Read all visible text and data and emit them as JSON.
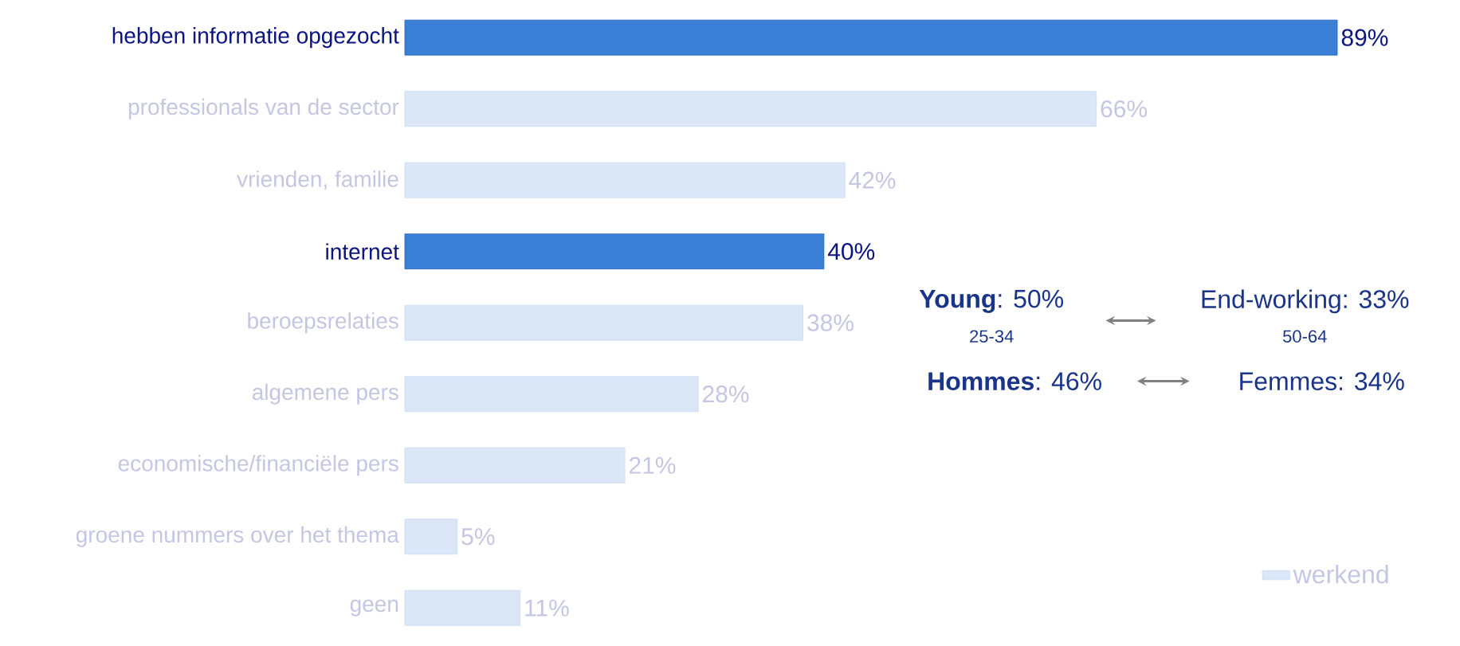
{
  "chart_data": {
    "type": "bar",
    "orientation": "horizontal",
    "categories": [
      "hebben informatie opgezocht",
      "professionals van de sector",
      "vrienden, familie",
      "internet",
      "beroepsrelaties",
      "algemene pers",
      "economische/financiële pers",
      "groene nummers over het thema",
      "geen"
    ],
    "series": [
      {
        "name": "werkend",
        "color": "#dbe7f7",
        "values": [
          89,
          66,
          42,
          40,
          38,
          28,
          21,
          5,
          11
        ],
        "colors": [
          "#3c7fd6",
          "#dbe7f7",
          "#dbe7f7",
          "#3c7fd6",
          "#dbe7f7",
          "#dbe7f7",
          "#dbe7f7",
          "#dbe7f7",
          "#dbe7f7"
        ],
        "value_labels": [
          "89%",
          "66%",
          "42%",
          "40%",
          "38%",
          "28%",
          "21%",
          "5%",
          "11%"
        ]
      }
    ],
    "tick_labels": "y",
    "legend": "bottom right",
    "annotations": [
      "**Young**: 50%",
      "25-34",
      "End-working: 33%",
      "50-64",
      "**Hommes**: 46%",
      "Femmes: 34%"
    ]
  }
}
